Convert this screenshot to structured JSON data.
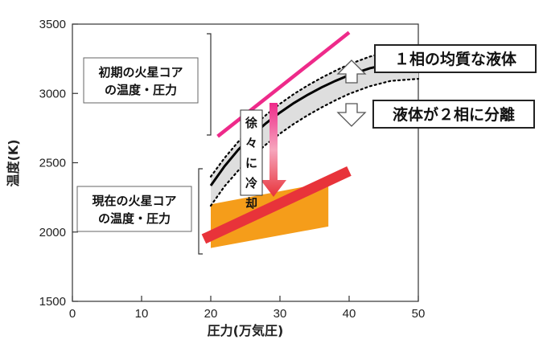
{
  "chart_data": {
    "type": "line",
    "xlabel": "圧力(万気圧)",
    "ylabel": "温度(K)",
    "xlim": [
      0,
      50
    ],
    "ylim": [
      1500,
      3500
    ],
    "xticks": [
      "0",
      "10",
      "20",
      "30",
      "40",
      "50"
    ],
    "yticks": [
      "1500",
      "2000",
      "2500",
      "3000",
      "3500"
    ],
    "grid": false,
    "series": [
      {
        "name": "",
        "style": "pink-line",
        "color": "#ee2a8a",
        "x": [
          21,
          40
        ],
        "y": [
          2690,
          3440
        ]
      },
      {
        "name": "",
        "style": "solid-curve",
        "color": "#000000",
        "x": [
          20,
          22,
          24,
          26,
          28,
          30,
          32,
          34,
          36,
          38,
          40,
          43,
          46,
          50
        ],
        "y": [
          2335,
          2475,
          2595,
          2697,
          2785,
          2862,
          2930,
          2990,
          3043,
          3090,
          3132,
          3182,
          3215,
          3230
        ]
      },
      {
        "name": "",
        "style": "dotted-upper",
        "color": "#000000",
        "x": [
          20,
          22,
          24,
          26,
          28,
          30,
          32,
          34,
          36,
          38,
          40,
          43,
          46,
          50
        ],
        "y": [
          2400,
          2535,
          2653,
          2755,
          2845,
          2925,
          2995,
          3057,
          3113,
          3163,
          3210,
          3266,
          3305,
          3320
        ]
      },
      {
        "name": "",
        "style": "dotted-lower",
        "color": "#000000",
        "x": [
          20,
          22,
          24,
          26,
          28,
          30,
          32,
          34,
          36,
          38,
          40,
          43,
          46,
          50
        ],
        "y": [
          2190,
          2330,
          2445,
          2545,
          2632,
          2710,
          2780,
          2842,
          2898,
          2950,
          2997,
          3052,
          3090,
          3105
        ]
      },
      {
        "name": "",
        "style": "red-band",
        "color": "#e8333a",
        "x": [
          19,
          40
        ],
        "y": [
          1950,
          2440
        ]
      }
    ],
    "regions": [
      {
        "style": "orange-area",
        "color": "#f59d1a",
        "polygon": [
          [
            20,
            1885
          ],
          [
            20,
            2200
          ],
          [
            37,
            2360
          ],
          [
            37,
            2040
          ]
        ]
      }
    ],
    "annotations": {
      "early_core": "初期の火星コア\nの温度・圧力",
      "present_core": "現在の火星コア\nの温度・圧力",
      "homogeneous": "１相の均質な液体",
      "separation": "液体が２相に分離",
      "cooling": "徐々に冷却"
    }
  }
}
